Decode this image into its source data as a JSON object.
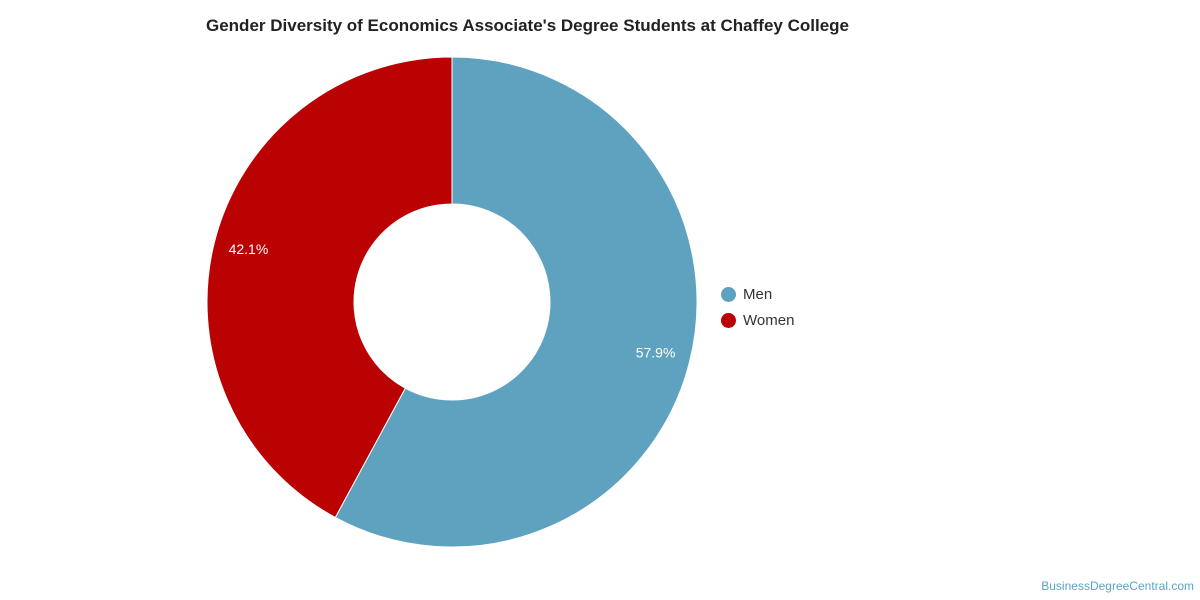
{
  "chart_data": {
    "type": "pie",
    "title": "Gender Diversity of Economics Associate's Degree Students at Chaffey College",
    "categories": [
      "Men",
      "Women"
    ],
    "values": [
      57.9,
      42.1
    ],
    "labels": [
      "57.9%",
      "42.1%"
    ],
    "colors": [
      "#5ea2bf",
      "#bb0202"
    ],
    "donut": true,
    "legend_position": "right"
  },
  "credit": "BusinessDegreeCentral.com"
}
